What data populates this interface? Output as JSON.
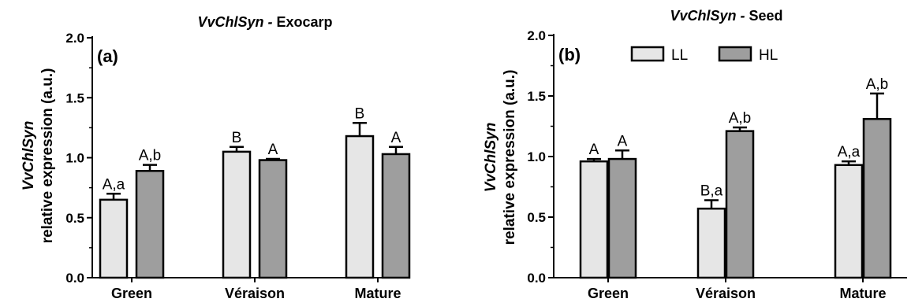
{
  "legend": {
    "items": [
      {
        "label": "LL",
        "color": "#e6e6e6"
      },
      {
        "label": "HL",
        "color": "#9e9e9e"
      }
    ]
  },
  "chart_data": [
    {
      "type": "bar",
      "panel_label": "(a)",
      "title_gene": "VvChlSyn",
      "title_sep": " - ",
      "title_tissue": "Exocarp",
      "ylabel_gene": "VvChlSyn",
      "ylabel": "relative expression (a.u.)",
      "ylim": [
        0,
        2.0
      ],
      "yticks": [
        "0.0",
        "0.5",
        "1.0",
        "1.5",
        "2.0"
      ],
      "categories": [
        "Green",
        "Véraison",
        "Mature"
      ],
      "series": [
        {
          "name": "LL",
          "values": [
            0.65,
            1.05,
            1.18
          ],
          "errors": [
            0.05,
            0.04,
            0.11
          ],
          "labels": [
            "A,a",
            "B",
            "B"
          ]
        },
        {
          "name": "HL",
          "values": [
            0.89,
            0.98,
            1.03
          ],
          "errors": [
            0.05,
            0.01,
            0.06
          ],
          "labels": [
            "A,b",
            "A",
            "A"
          ]
        }
      ]
    },
    {
      "type": "bar",
      "panel_label": "(b)",
      "title_gene": "VvChlSyn",
      "title_sep": " - ",
      "title_tissue": "Seed",
      "ylabel_gene": "VvChlSyn",
      "ylabel": "relative expression (a.u.)",
      "ylim": [
        0,
        2.0
      ],
      "yticks": [
        "0.0",
        "0.5",
        "1.0",
        "1.5",
        "2.0"
      ],
      "categories": [
        "Green",
        "Véraison",
        "Mature"
      ],
      "series": [
        {
          "name": "LL",
          "values": [
            0.96,
            0.57,
            0.93
          ],
          "errors": [
            0.02,
            0.07,
            0.03
          ],
          "labels": [
            "A",
            "B,a",
            "A,a"
          ]
        },
        {
          "name": "HL",
          "values": [
            0.98,
            1.21,
            1.31
          ],
          "errors": [
            0.07,
            0.03,
            0.21
          ],
          "labels": [
            "A",
            "A,b",
            "A,b"
          ]
        }
      ]
    }
  ]
}
